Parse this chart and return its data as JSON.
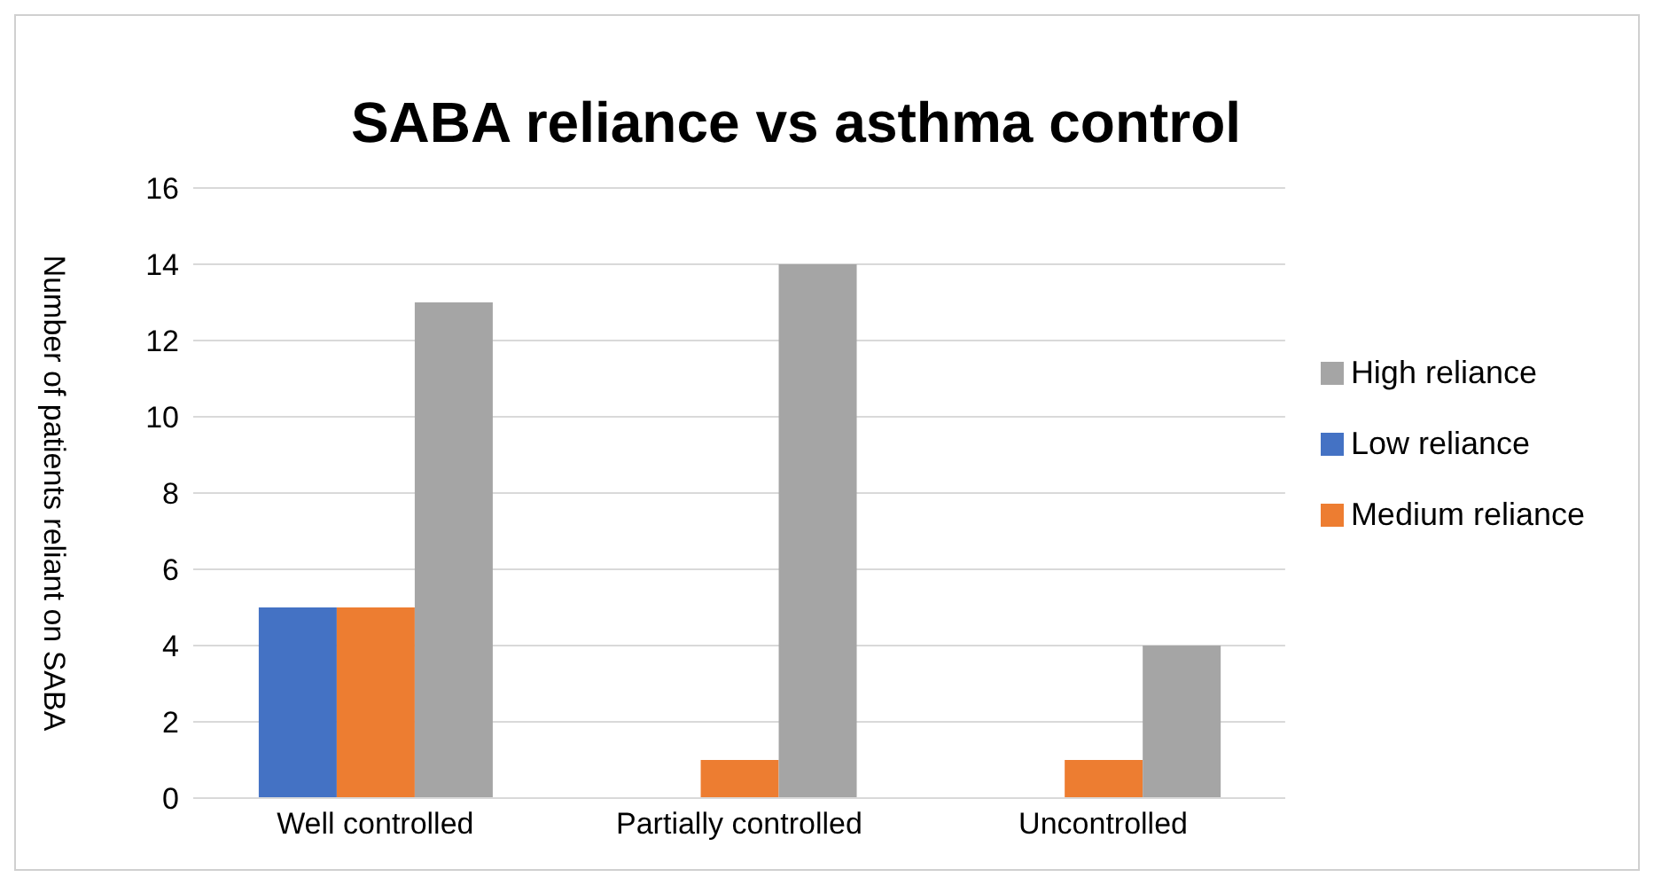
{
  "chart_data": {
    "type": "bar",
    "title": "SABA reliance vs asthma control",
    "ylabel": "Number of patients reliant on SABA",
    "categories": [
      "Well controlled",
      "Partially controlled",
      "Uncontrolled"
    ],
    "series": [
      {
        "name": "Low reliance",
        "color": "#4472c4",
        "values": [
          5,
          0,
          0
        ]
      },
      {
        "name": "Medium reliance",
        "color": "#ed7d31",
        "values": [
          5,
          1,
          1
        ]
      },
      {
        "name": "High reliance",
        "color": "#a5a5a5",
        "values": [
          13,
          14,
          4
        ]
      }
    ],
    "ylim": [
      0,
      16
    ],
    "yticks": [
      0,
      2,
      4,
      6,
      8,
      10,
      12,
      14,
      16
    ],
    "grid": "y",
    "legend": "right"
  }
}
